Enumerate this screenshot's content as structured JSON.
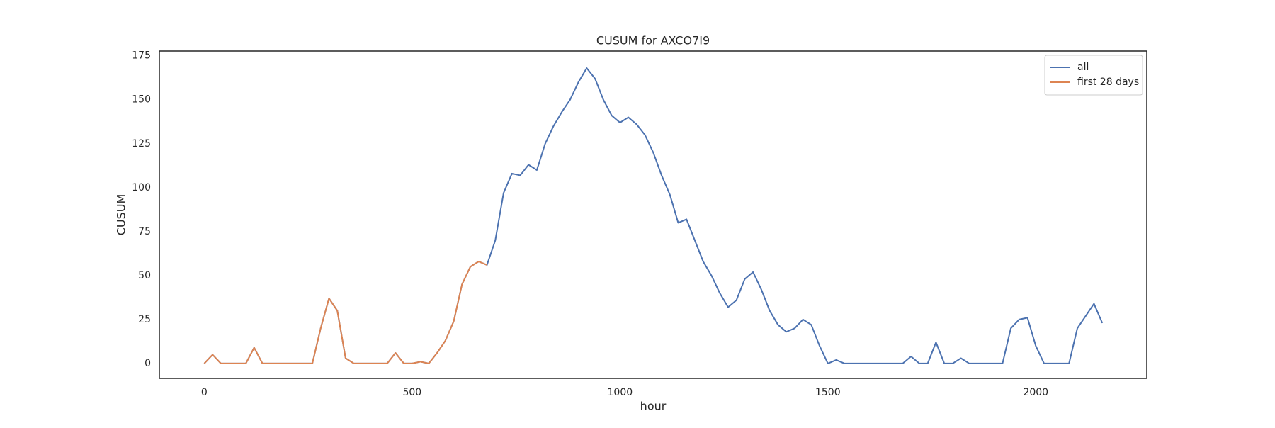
{
  "chart_data": {
    "type": "line",
    "title": "CUSUM for AXCO7I9",
    "x_label": "hour",
    "y_label": "CUSUM",
    "x": [
      0,
      20,
      40,
      60,
      80,
      100,
      120,
      140,
      160,
      180,
      200,
      220,
      240,
      260,
      280,
      300,
      320,
      340,
      360,
      380,
      400,
      420,
      440,
      460,
      480,
      500,
      520,
      540,
      560,
      580,
      600,
      620,
      640,
      660,
      680,
      700,
      720,
      740,
      760,
      780,
      800,
      820,
      840,
      860,
      880,
      900,
      920,
      940,
      960,
      980,
      1000,
      1020,
      1040,
      1060,
      1080,
      1100,
      1120,
      1140,
      1160,
      1180,
      1200,
      1220,
      1240,
      1260,
      1280,
      1300,
      1320,
      1340,
      1360,
      1380,
      1400,
      1420,
      1440,
      1460,
      1480,
      1500,
      1520,
      1540,
      1560,
      1580,
      1600,
      1620,
      1640,
      1660,
      1680,
      1700,
      1720,
      1740,
      1760,
      1780,
      1800,
      1820,
      1840,
      1860,
      1880,
      1900,
      1920,
      1940,
      1960,
      1980,
      2000,
      2020,
      2040,
      2060,
      2080,
      2100,
      2120,
      2140,
      2160
    ],
    "series": [
      {
        "name": "all",
        "color": "#4c72b0",
        "values": [
          0,
          5,
          0,
          0,
          0,
          0,
          9,
          0,
          0,
          0,
          0,
          0,
          0,
          0,
          20,
          37,
          30,
          3,
          0,
          0,
          0,
          0,
          0,
          6,
          0,
          0,
          1,
          0,
          6,
          13,
          24,
          45,
          55,
          58,
          56,
          70,
          97,
          108,
          107,
          113,
          110,
          125,
          135,
          143,
          150,
          160,
          168,
          162,
          150,
          141,
          137,
          140,
          136,
          130,
          120,
          107,
          96,
          80,
          82,
          70,
          58,
          50,
          40,
          32,
          36,
          48,
          52,
          42,
          30,
          22,
          18,
          20,
          25,
          22,
          10,
          0,
          2,
          0,
          0,
          0,
          0,
          0,
          0,
          0,
          0,
          4,
          0,
          0,
          12,
          0,
          0,
          3,
          0,
          0,
          0,
          0,
          0,
          20,
          25,
          26,
          10,
          0,
          0,
          0,
          0,
          20,
          27,
          34,
          23
        ]
      },
      {
        "name": "first 28 days",
        "color": "#dd8452",
        "values": [
          0,
          5,
          0,
          0,
          0,
          0,
          9,
          0,
          0,
          0,
          0,
          0,
          0,
          0,
          20,
          37,
          30,
          3,
          0,
          0,
          0,
          0,
          0,
          6,
          0,
          0,
          1,
          0,
          6,
          13,
          24,
          45,
          55,
          58,
          56,
          null,
          null,
          null,
          null,
          null,
          null,
          null,
          null,
          null,
          null,
          null,
          null,
          null,
          null,
          null,
          null,
          null,
          null,
          null,
          null,
          null,
          null,
          null,
          null,
          null,
          null,
          null,
          null,
          null,
          null,
          null,
          null,
          null,
          null,
          null,
          null,
          null,
          null,
          null,
          null,
          null,
          null,
          null,
          null,
          null,
          null,
          null,
          null,
          null,
          null,
          null,
          null,
          null,
          null,
          null,
          null,
          null,
          null,
          null,
          null,
          null,
          null,
          null,
          null,
          null,
          null,
          null,
          null,
          null,
          null,
          null,
          null,
          null,
          null
        ]
      }
    ],
    "xlim": [
      -108,
      2267
    ],
    "ylim": [
      -8.5,
      177.7
    ],
    "xticks": [
      0,
      500,
      1000,
      1500,
      2000
    ],
    "yticks": [
      0,
      25,
      50,
      75,
      100,
      125,
      150,
      175
    ],
    "legend": "upper right",
    "grid": false
  }
}
